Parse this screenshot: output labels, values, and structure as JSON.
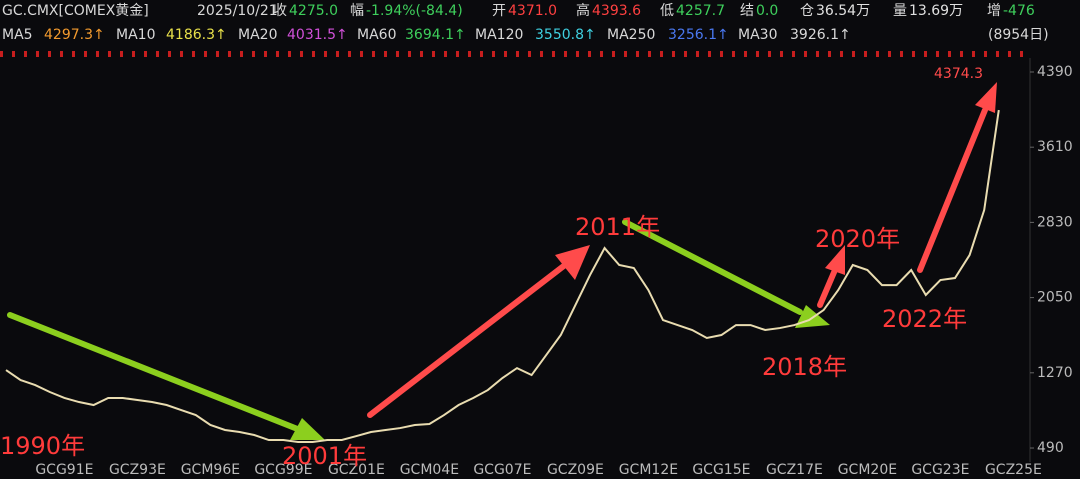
{
  "header": {
    "symbol": "GC.CMX[COMEX黄金]",
    "date": "2025/10/21",
    "quote": [
      {
        "label": "收",
        "value": "4275.0",
        "color": "#3ecf5c"
      },
      {
        "label": "幅",
        "value": "-1.94%(-84.4)",
        "color": "#3ecf5c"
      },
      {
        "label": "开",
        "value": "4371.0",
        "color": "#ff4040"
      },
      {
        "label": "高",
        "value": "4393.6",
        "color": "#ff4040"
      },
      {
        "label": "低",
        "value": "4257.7",
        "color": "#3ecf5c"
      },
      {
        "label": "结",
        "value": "0.0",
        "color": "#3ecf5c"
      },
      {
        "label": "仓",
        "value": "36.54万",
        "color": "#e0e0e0"
      },
      {
        "label": "量",
        "value": "13.69万",
        "color": "#e0e0e0"
      },
      {
        "label": "增",
        "value": "-476",
        "color": "#3ecf5c"
      }
    ],
    "ma": [
      {
        "name": "MA5",
        "value": "4297.3↑",
        "color": "#f29a2e"
      },
      {
        "name": "MA10",
        "value": "4186.3↑",
        "color": "#e8e04a"
      },
      {
        "name": "MA20",
        "value": "4031.5↑",
        "color": "#d050d8"
      },
      {
        "name": "MA60",
        "value": "3694.1↑",
        "color": "#3ecf5c"
      },
      {
        "name": "MA120",
        "value": "3550.8↑",
        "color": "#3fd0e0"
      },
      {
        "name": "MA250",
        "value": "3256.1↑",
        "color": "#4a78f0"
      },
      {
        "name": "MA30",
        "value": "3926.1↑",
        "color": "#d8d8d8"
      }
    ],
    "period": "(8954日)"
  },
  "chart_data": {
    "type": "line",
    "x": [
      null,
      null,
      null,
      null,
      "GCG91E",
      null,
      null,
      null,
      null,
      "GCZ93E",
      null,
      null,
      null,
      null,
      "GCM96E",
      null,
      null,
      null,
      null,
      "GCG99E",
      null,
      null,
      null,
      null,
      "GCZ01E",
      null,
      null,
      null,
      null,
      "GCM04E",
      null,
      null,
      null,
      null,
      "GCG07E",
      null,
      null,
      null,
      null,
      "GCZ09E",
      null,
      null,
      null,
      null,
      "GCM12E",
      null,
      null,
      null,
      null,
      "GCG15E",
      null,
      null,
      null,
      null,
      "GCZ17E",
      null,
      null,
      null,
      null,
      "GCM20E",
      null,
      null,
      null,
      null,
      "GCG23E",
      null,
      null,
      null,
      null,
      "GCZ25E"
    ],
    "series": [
      {
        "name": "GC.CMX",
        "color": "#e9dcb0",
        "values": [
          1299,
          1195,
          1143,
          1071,
          1009,
          967,
          936,
          1009,
          1009,
          988,
          967,
          936,
          884,
          832,
          729,
          677,
          656,
          625,
          573,
          573,
          552,
          552,
          573,
          573,
          614,
          656,
          677,
          697,
          729,
          739,
          832,
          936,
          1009,
          1091,
          1216,
          1319,
          1247,
          1454,
          1662,
          1973,
          2284,
          2564,
          2388,
          2357,
          2128,
          1817,
          1765,
          1714,
          1631,
          1662,
          1765,
          1765,
          1714,
          1734,
          1765,
          1817,
          1921,
          2128,
          2388,
          2336,
          2180,
          2180,
          2336,
          2077,
          2232,
          2253,
          2491,
          2958,
          3995,
          null
        ]
      }
    ],
    "ylim": [
      345,
      4535
    ],
    "yticks": [
      490,
      1270,
      2050,
      2830,
      3610,
      4390
    ],
    "grid": false,
    "annotations": [
      "4374.3",
      "1990年",
      "2001年",
      "2011年",
      "2018年",
      "2020年",
      "2022年"
    ]
  }
}
